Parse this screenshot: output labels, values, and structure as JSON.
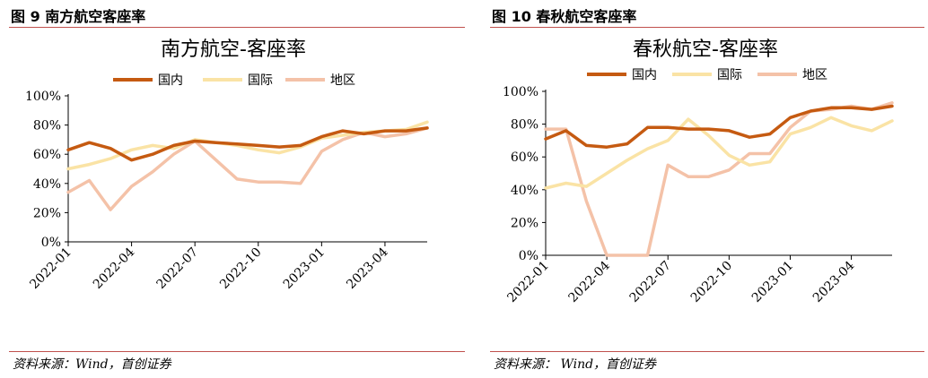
{
  "captions": [
    "图 9 南方航空客座率",
    "图 10 春秋航空客座率"
  ],
  "source": "资料来源：Wind，首创证券",
  "source_right": "资料来源： Wind，首创证券",
  "chart_data": [
    {
      "type": "line",
      "title": "南方航空-客座率",
      "x_tick_labels": [
        "2022-01",
        "2022-04",
        "2022-07",
        "2022-10",
        "2023-01",
        "2023-04"
      ],
      "y_tick_labels": [
        "0%",
        "20%",
        "40%",
        "60%",
        "80%",
        "100%"
      ],
      "ylim": [
        0,
        100
      ],
      "series": [
        {
          "name": "国内",
          "color": "#c55a11",
          "values": [
            63,
            68,
            64,
            56,
            60,
            66,
            69,
            68,
            67,
            66,
            65,
            66,
            72,
            76,
            74,
            76,
            76,
            78
          ]
        },
        {
          "name": "国际",
          "color": "#fae3a5",
          "values": [
            50,
            53,
            57,
            63,
            66,
            64,
            70,
            68,
            66,
            63,
            61,
            65,
            71,
            73,
            75,
            76,
            77,
            82
          ]
        },
        {
          "name": "地区",
          "color": "#f4c2a8",
          "values": [
            34,
            42,
            22,
            38,
            48,
            60,
            69,
            56,
            43,
            41,
            41,
            40,
            62,
            70,
            75,
            72,
            74,
            78
          ]
        }
      ]
    },
    {
      "type": "line",
      "title": "春秋航空-客座率",
      "x_tick_labels": [
        "2022-01",
        "2022-04",
        "2022-07",
        "2022-10",
        "2023-01",
        "2023-04"
      ],
      "y_tick_labels": [
        "0%",
        "20%",
        "40%",
        "60%",
        "80%",
        "100%"
      ],
      "ylim": [
        0,
        100
      ],
      "series": [
        {
          "name": "国内",
          "color": "#c55a11",
          "values": [
            71,
            76,
            67,
            66,
            68,
            78,
            78,
            77,
            77,
            76,
            72,
            74,
            84,
            88,
            90,
            90,
            89,
            91
          ]
        },
        {
          "name": "国际",
          "color": "#fae3a5",
          "values": [
            41,
            44,
            42,
            50,
            58,
            65,
            70,
            83,
            73,
            61,
            55,
            57,
            74,
            78,
            84,
            79,
            76,
            82
          ]
        },
        {
          "name": "地区",
          "color": "#f4c2a8",
          "values": [
            77,
            77,
            33,
            0,
            0,
            0,
            55,
            48,
            48,
            52,
            62,
            62,
            78,
            88,
            89,
            91,
            89,
            93
          ]
        }
      ]
    }
  ]
}
